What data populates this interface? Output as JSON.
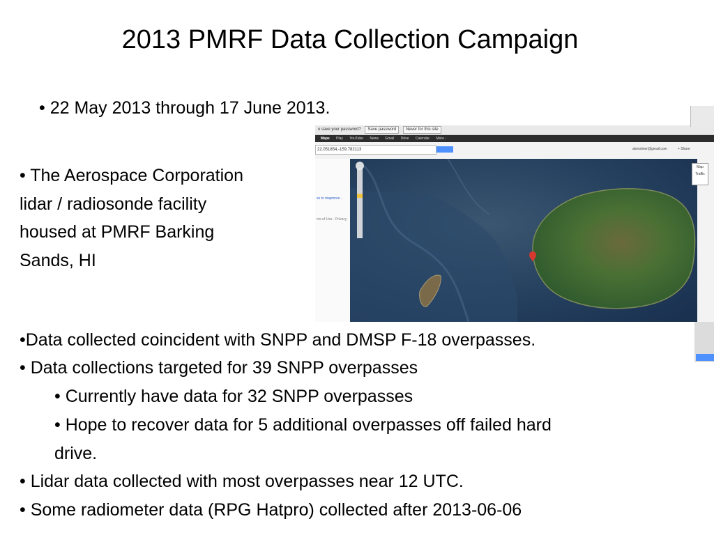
{
  "title": "2013 PMRF Data Collection Campaign",
  "bullets": {
    "date_range": "• 22 May 2013 through 17 June 2013.",
    "aerospace": [
      "• The Aerospace Corporation",
      "lidar / radiosonde facility",
      "housed at PMRF Barking",
      "Sands, HI"
    ],
    "data_coincident": "•Data collected coincident with SNPP and DMSP F-18 overpasses.",
    "targeted": "• Data collections targeted for 39 SNPP overpasses",
    "current": "• Currently have data for 32 SNPP overpasses",
    "recover_line1": "• Hope to recover data for 5 additional overpasses off failed hard",
    "recover_line2": "drive.",
    "lidar": "• Lidar data collected with most overpasses near 12 UTC.",
    "radiometer": "• Some radiometer data (RPG Hatpro) collected after 2013-06-06"
  },
  "screenshot": {
    "password_prompt": "o save your password?",
    "save_password": "Save password",
    "never": "Never for this site",
    "nav": [
      "Maps",
      "Play",
      "YouTube",
      "News",
      "Gmail",
      "Drive",
      "Calendar",
      "More -"
    ],
    "search_value": "22.051854,-159.782113",
    "user": "akmotiner@gmail.com",
    "share": "+ Share",
    "side_links": [
      "se to map",
      "more -",
      "ms of Use - Privacy"
    ],
    "map_type": [
      "Map",
      "Traffic"
    ],
    "ocean_color": "#1f3a5c",
    "land_color": "#3e6a35"
  }
}
